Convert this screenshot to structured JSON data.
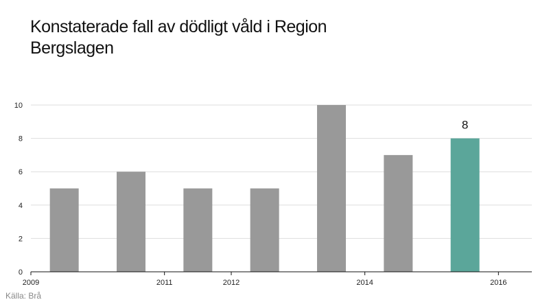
{
  "chart_data": {
    "type": "bar",
    "title": "Konstaterade fall av dödligt våld i Region Bergslagen",
    "xlabel": "",
    "ylabel": "",
    "x": [
      2009.5,
      2010.5,
      2011.5,
      2012.5,
      2013.5,
      2014.5,
      2015.5
    ],
    "values": [
      5,
      6,
      5,
      5,
      10,
      7,
      8
    ],
    "xlim": [
      2009,
      2016.5
    ],
    "ylim": [
      0,
      10
    ],
    "x_ticks": [
      2009,
      2011,
      2012,
      2014,
      2016
    ],
    "x_tick_labels": [
      "2009",
      "2011",
      "2012",
      "2014",
      "2016"
    ],
    "y_ticks": [
      0,
      2,
      4,
      6,
      8,
      10
    ],
    "y_tick_labels": [
      "0",
      "2",
      "4",
      "6",
      "8",
      "10"
    ],
    "grid": true,
    "legend": "none",
    "highlight_index": 6,
    "highlight_label": "8",
    "colors": {
      "bar": "#999999",
      "highlight": "#5ba69a",
      "grid": "#dddddd",
      "axis": "#111111"
    }
  },
  "source": "Källa: Brå"
}
